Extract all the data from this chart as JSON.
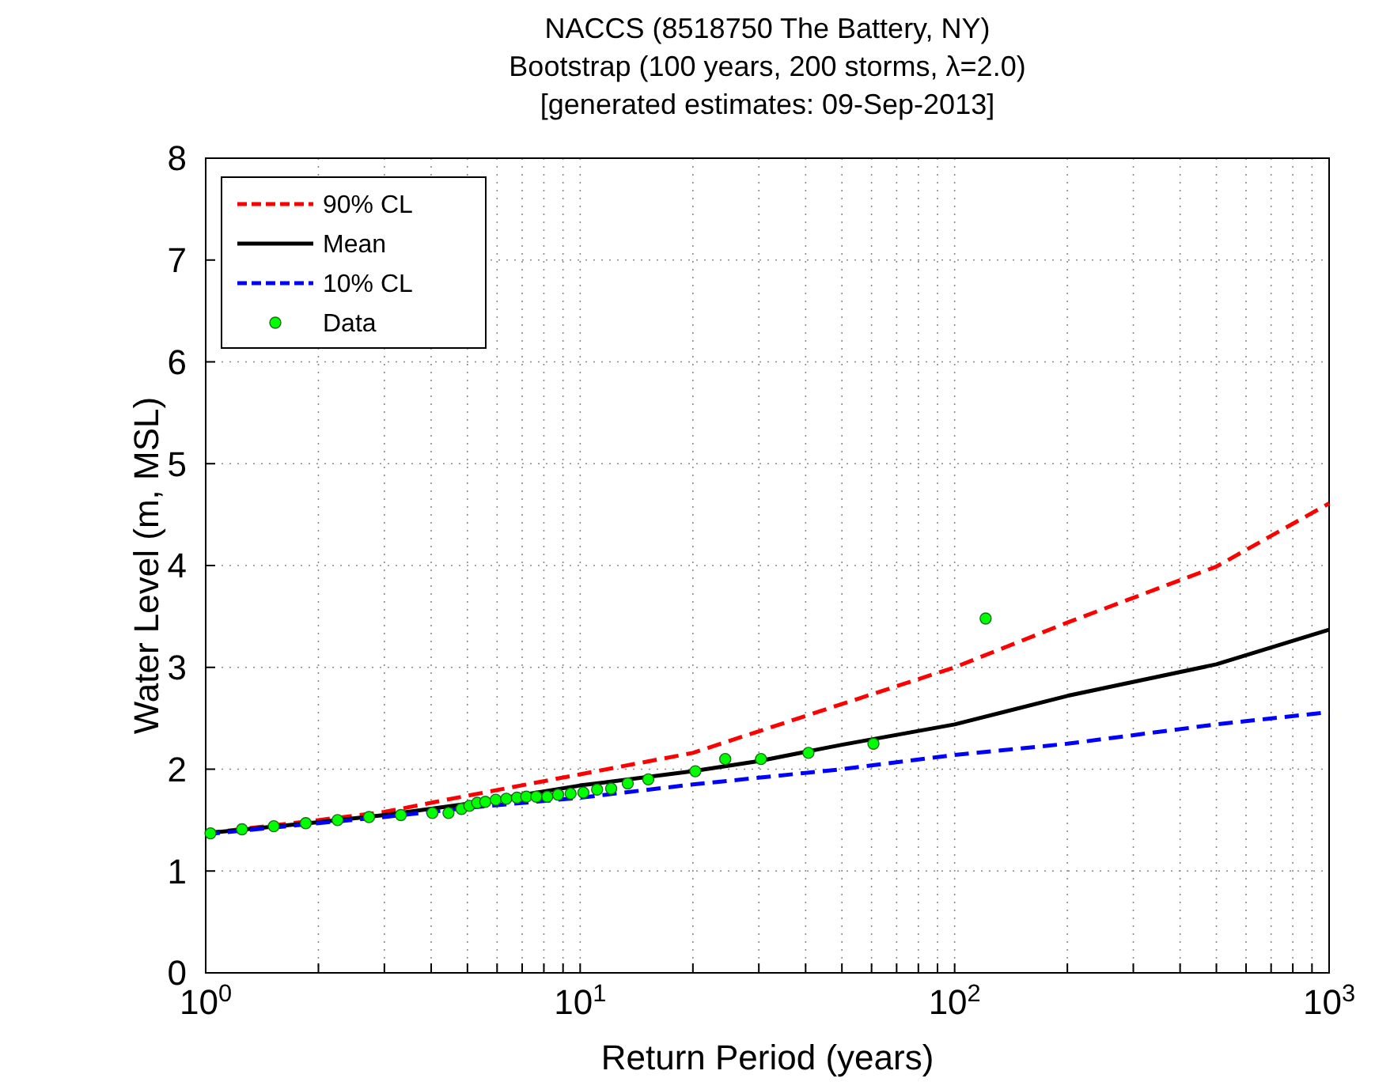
{
  "chart_data": {
    "type": "line",
    "title": "NACCS (8518750 The Battery, NY)",
    "subtitle": "Bootstrap (100 years, 200 storms, λ=2.0)",
    "annotations": [
      "[generated estimates: 09-Sep-2013]"
    ],
    "xlabel": "Return Period (years)",
    "ylabel": "Water Level (m, MSL)",
    "log": "x",
    "grid": true,
    "legend": "top left",
    "xlim": [
      1,
      1000
    ],
    "ylim": [
      0,
      8
    ],
    "xticks": [
      {
        "value": 1,
        "label": "10$^{0}$"
      },
      {
        "value": 2,
        "label": null
      },
      {
        "value": 3,
        "label": null
      },
      {
        "value": 4,
        "label": null
      },
      {
        "value": 5,
        "label": null
      },
      {
        "value": 6,
        "label": null
      },
      {
        "value": 7,
        "label": null
      },
      {
        "value": 8,
        "label": null
      },
      {
        "value": 9,
        "label": null
      },
      {
        "value": 10,
        "label": "10$^{1}$"
      },
      {
        "value": 20,
        "label": null
      },
      {
        "value": 30,
        "label": null
      },
      {
        "value": 40,
        "label": null
      },
      {
        "value": 50,
        "label": null
      },
      {
        "value": 60,
        "label": null
      },
      {
        "value": 70,
        "label": null
      },
      {
        "value": 80,
        "label": null
      },
      {
        "value": 90,
        "label": null
      },
      {
        "value": 100,
        "label": "10$^{2}$"
      },
      {
        "value": 200,
        "label": null
      },
      {
        "value": 300,
        "label": null
      },
      {
        "value": 400,
        "label": null
      },
      {
        "value": 500,
        "label": null
      },
      {
        "value": 600,
        "label": null
      },
      {
        "value": 700,
        "label": null
      },
      {
        "value": 800,
        "label": null
      },
      {
        "value": 900,
        "label": null
      },
      {
        "value": 1000,
        "label": "10$^{3}$"
      }
    ],
    "yticks": [
      0,
      1,
      2,
      3,
      4,
      5,
      6,
      7,
      8
    ],
    "series": [
      {
        "name": "90% CL",
        "color": "#ff0000",
        "line_style": "dashed",
        "marker": "none",
        "x": [
          1,
          2,
          3,
          5,
          10,
          20,
          50,
          100,
          200,
          500,
          1000
        ],
        "values": [
          1.37,
          1.5,
          1.58,
          1.74,
          1.95,
          2.16,
          2.64,
          3.0,
          3.44,
          3.99,
          4.61
        ]
      },
      {
        "name": "Mean",
        "color": "#000000",
        "line_style": "solid",
        "marker": "none",
        "x": [
          1,
          2,
          3,
          5,
          10,
          20,
          30,
          50,
          100,
          200,
          500,
          1000
        ],
        "values": [
          1.37,
          1.48,
          1.55,
          1.66,
          1.84,
          1.98,
          2.08,
          2.24,
          2.44,
          2.72,
          3.03,
          3.37
        ]
      },
      {
        "name": "10% CL",
        "color": "#0000ff",
        "line_style": "dashed",
        "marker": "none",
        "x": [
          1,
          2,
          3,
          5,
          10,
          20,
          50,
          100,
          200,
          500,
          1000
        ],
        "values": [
          1.36,
          1.47,
          1.53,
          1.62,
          1.72,
          1.85,
          2.0,
          2.14,
          2.25,
          2.44,
          2.56
        ]
      },
      {
        "name": "Data",
        "type": "scatter",
        "color": "#00ff00",
        "marker": "circle",
        "x": [
          1.03,
          1.25,
          1.52,
          1.85,
          2.25,
          2.73,
          3.32,
          4.03,
          4.45,
          4.82,
          5.06,
          5.31,
          5.58,
          5.95,
          6.35,
          6.78,
          7.18,
          7.64,
          8.17,
          8.73,
          9.43,
          10.2,
          11.1,
          12.1,
          13.4,
          15.2,
          20.3,
          24.4,
          30.4,
          40.7,
          60.7,
          121
        ],
        "values": [
          1.37,
          1.41,
          1.44,
          1.47,
          1.5,
          1.53,
          1.55,
          1.57,
          1.57,
          1.61,
          1.64,
          1.67,
          1.68,
          1.7,
          1.71,
          1.72,
          1.73,
          1.73,
          1.73,
          1.75,
          1.76,
          1.77,
          1.8,
          1.81,
          1.86,
          1.9,
          1.98,
          2.1,
          2.1,
          2.16,
          2.25,
          3.48
        ]
      }
    ]
  }
}
